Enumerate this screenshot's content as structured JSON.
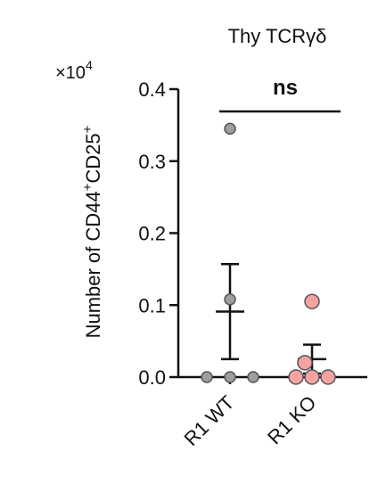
{
  "chart_data": {
    "type": "scatter",
    "title": "Thy TCRγδ",
    "ylabel_base": "Number of CD44",
    "ylabel_sup1": "+",
    "ylabel_mid": "CD25",
    "ylabel_sup2": "+",
    "multiplier_base": "×10",
    "multiplier_exp": "4",
    "ylim": [
      0,
      0.4
    ],
    "yticks": [
      "0.0",
      "0.1",
      "0.2",
      "0.3",
      "0.4"
    ],
    "ytick_values": [
      0.0,
      0.1,
      0.2,
      0.3,
      0.4
    ],
    "categories": [
      "R1 WT",
      "R1 KO"
    ],
    "significance": "ns",
    "series": [
      {
        "category": "R1 WT",
        "color": "#9e9e9e",
        "values": [
          0.345,
          0.108,
          0.0,
          0.0,
          0.0
        ],
        "mean": 0.091,
        "sem_low": 0.025,
        "sem_high": 0.157
      },
      {
        "category": "R1 KO",
        "color": "#f4a3a0",
        "values": [
          0.105,
          0.02,
          0.0,
          0.0,
          0.0
        ],
        "mean": 0.025,
        "sem_low": 0.005,
        "sem_high": 0.045
      }
    ]
  }
}
